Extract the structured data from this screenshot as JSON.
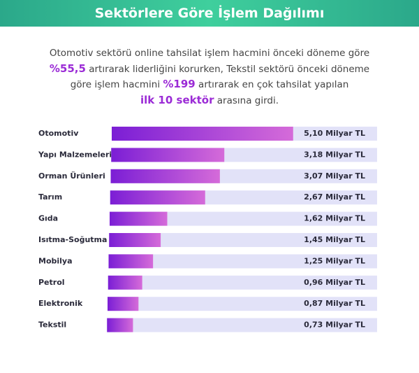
{
  "chart_data": {
    "type": "hbar",
    "title": "Sektörlere Göre İşlem Dağılımı",
    "subtitle": [
      "Otomotiv sektörü online tahsilat işlem hacmini önceki döneme göre",
      "%55,5",
      " artırarak liderliğini korurken, Tekstil sektörü önceki döneme",
      "göre işlem hacmini ",
      "%199",
      " artırarak en çok tahsilat yapılan",
      "ilk 10 sektör",
      " arasına girdi."
    ],
    "categories": [
      "Otomotiv",
      "Yapı Malzemeleri",
      "Orman Ürünleri",
      "Tarım",
      "Gıda",
      "Isıtma-Soğutma",
      "Mobilya",
      "Petrol",
      "Elektronik",
      "Tekstil"
    ],
    "values": [
      5.1,
      3.18,
      3.07,
      2.67,
      1.62,
      1.45,
      1.25,
      0.96,
      0.87,
      0.73
    ],
    "value_labels": [
      "5,10 Milyar TL",
      "3,18 Milyar TL",
      "3,07 Milyar TL",
      "2,67 Milyar TL",
      "1,62 Milyar TL",
      "1,45 Milyar TL",
      "1,25 Milyar TL",
      "0,96 Milyar TL",
      "0,87 Milyar TL",
      "0,73 Milyar TL"
    ],
    "color": "#7b1ed5",
    "color_end": "#d56bd9",
    "track_color": "#e2e2f8",
    "xlim": [
      0,
      7.5
    ]
  }
}
